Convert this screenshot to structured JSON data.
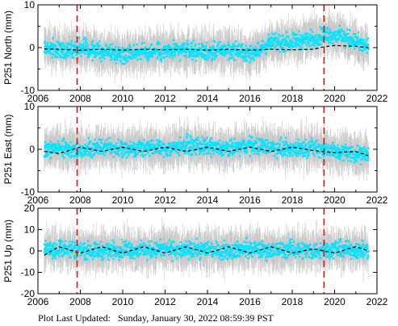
{
  "chart_data": [
    {
      "type": "scatter",
      "title": "",
      "ylabel": "P251 North (mm)",
      "xlabel": "",
      "xlim": [
        2006,
        2022
      ],
      "ylim": [
        -10,
        10
      ],
      "xticks": [
        "2006",
        "2008",
        "2010",
        "2012",
        "2014",
        "2016",
        "2018",
        "2020",
        "2022"
      ],
      "yticks": [
        "-10",
        "0",
        "10"
      ],
      "event_lines_x": [
        2007.85,
        2019.5
      ],
      "series": [
        {
          "x": [
            2006.3,
            2007,
            2008,
            2009,
            2010,
            2011,
            2012,
            2013,
            2014,
            2015,
            2016,
            2017,
            2018,
            2019,
            2019.5,
            2020,
            2021,
            2021.6
          ],
          "y": [
            0,
            -0.5,
            0,
            -1,
            -1.5,
            -1,
            -1,
            -0.5,
            -1,
            -0.5,
            -1.5,
            1,
            1.5,
            2,
            3,
            3,
            1.5,
            0
          ]
        },
        {
          "x": [
            2006.3,
            2007,
            2008,
            2009,
            2010,
            2011,
            2012,
            2013,
            2014,
            2015,
            2016,
            2017,
            2018,
            2019,
            2019.5,
            2020,
            2021,
            2021.6
          ],
          "y": [
            -0.3,
            -0.4,
            -0.6,
            -0.4,
            -0.6,
            -0.4,
            -0.5,
            -0.4,
            -0.6,
            -0.4,
            -0.6,
            -0.4,
            -0.5,
            -0.4,
            0.2,
            0.5,
            0.3,
            0
          ]
        }
      ]
    },
    {
      "type": "scatter",
      "title": "",
      "ylabel": "P251 East (mm)",
      "xlabel": "",
      "xlim": [
        2006,
        2022
      ],
      "ylim": [
        -10,
        10
      ],
      "xticks": [
        "2006",
        "2008",
        "2010",
        "2012",
        "2014",
        "2016",
        "2018",
        "2020",
        "2022"
      ],
      "yticks": [
        "-10",
        "0",
        "10"
      ],
      "event_lines_x": [
        2007.85,
        2019.5
      ],
      "series": [
        {
          "x": [
            2006.3,
            2007,
            2008,
            2009,
            2010,
            2011,
            2012,
            2013,
            2014,
            2015,
            2016,
            2017,
            2018,
            2019,
            2020,
            2021,
            2021.6
          ],
          "y": [
            -0.5,
            0.5,
            -0.5,
            0.5,
            0,
            0.5,
            0,
            1,
            0.5,
            0,
            1,
            0.5,
            0,
            0.5,
            -0.5,
            -1,
            -1.5
          ]
        },
        {
          "x": [
            2006.3,
            2007,
            2008,
            2009,
            2010,
            2011,
            2012,
            2013,
            2014,
            2015,
            2016,
            2017,
            2018,
            2019,
            2020,
            2021,
            2021.6
          ],
          "y": [
            -0.5,
            -1,
            0.5,
            -0.5,
            0.5,
            -0.5,
            0.5,
            -0.5,
            0.5,
            -0.5,
            0.5,
            -0.5,
            0.5,
            -0.3,
            -0.8,
            -0.5,
            -1.5
          ]
        }
      ]
    },
    {
      "type": "scatter",
      "title": "",
      "ylabel": "P251 Up (mm)",
      "xlabel": "",
      "xlim": [
        2006,
        2022
      ],
      "ylim": [
        -20,
        20
      ],
      "xticks": [
        "2006",
        "2008",
        "2010",
        "2012",
        "2014",
        "2016",
        "2018",
        "2020",
        "2022"
      ],
      "yticks": [
        "-20",
        "-10",
        "0",
        "10",
        "20"
      ],
      "event_lines_x": [
        2007.85,
        2019.5
      ],
      "series": [
        {
          "x": [
            2006.3,
            2007,
            2008,
            2009,
            2010,
            2011,
            2012,
            2013,
            2014,
            2015,
            2016,
            2017,
            2018,
            2019,
            2020,
            2021,
            2021.6
          ],
          "y": [
            0,
            1,
            0.5,
            0,
            1,
            0,
            1,
            0,
            1,
            0,
            1,
            0,
            1,
            0,
            1,
            0.5,
            0
          ]
        },
        {
          "x": [
            2006.3,
            2007,
            2008,
            2009,
            2010,
            2011,
            2012,
            2013,
            2014,
            2015,
            2016,
            2017,
            2018,
            2019,
            2020,
            2021,
            2021.6
          ],
          "y": [
            -2,
            2,
            -1,
            2,
            -1,
            2,
            -1,
            2,
            -1,
            2,
            -1,
            2,
            -1,
            1,
            -1,
            2,
            0
          ]
        }
      ]
    }
  ],
  "colors": {
    "points": "#00e5ff",
    "error_bars": "#c8c8c8",
    "model_line": "#000000",
    "event_lines": "#ff0000"
  },
  "footer": "Plot Last Updated:   Sunday, January 30, 2022 08:59:39 PST"
}
